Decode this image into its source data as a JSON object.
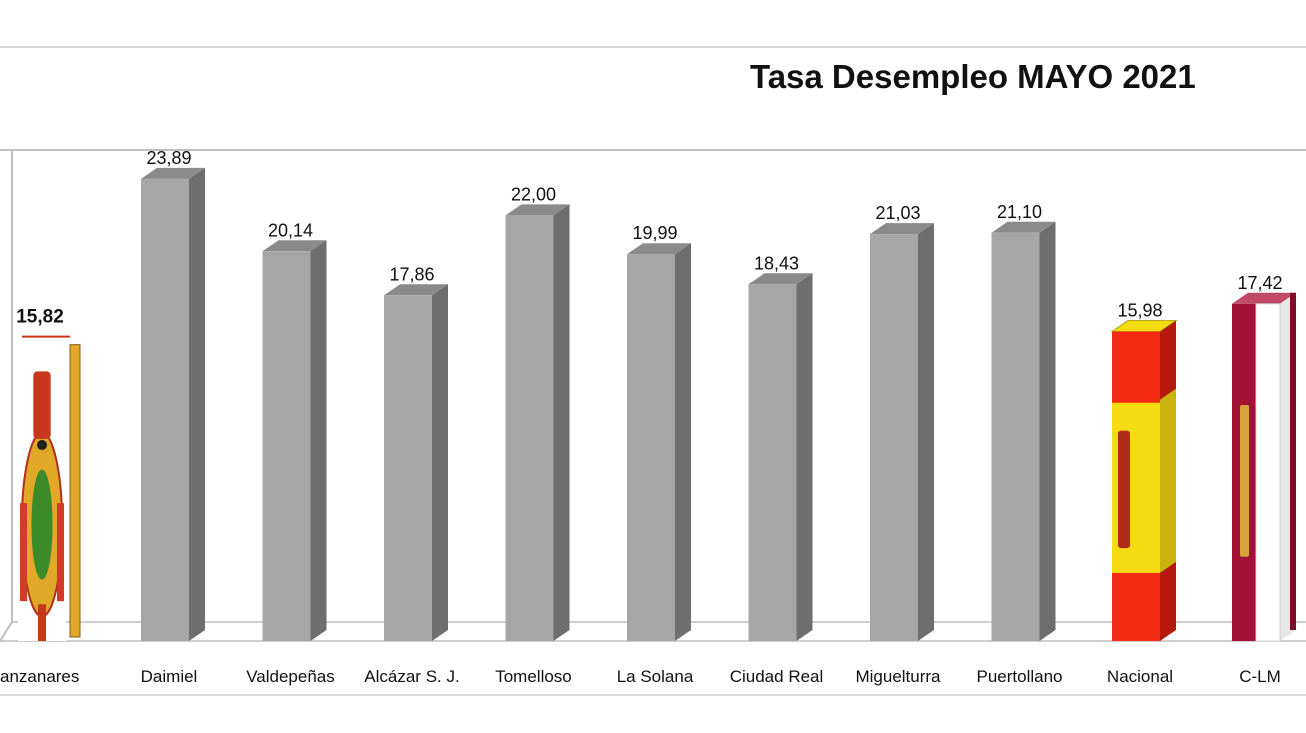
{
  "chart_data": {
    "type": "bar",
    "title": "Tasa Desempleo MAYO 2021",
    "xlabel": "",
    "ylabel": "",
    "ylim": [
      0,
      26
    ],
    "grid": false,
    "legend": "none",
    "categories": [
      "anzanares",
      "Daimiel",
      "Valdepeñas",
      "Alcázar S. J.",
      "Tomelloso",
      "La Solana",
      "Ciudad Real",
      "Miguelturra",
      "Puertollano",
      "Nacional",
      "C-LM"
    ],
    "values": [
      15.82,
      23.89,
      20.14,
      17.86,
      22.0,
      19.99,
      18.43,
      21.03,
      21.1,
      15.98,
      17.42
    ],
    "value_labels": [
      "15,82",
      "23,89",
      "20,14",
      "17,86",
      "22,00",
      "19,99",
      "18,43",
      "21,03",
      "21,10",
      "15,98",
      "17,42"
    ],
    "bar_styles": [
      "coat-of-arms",
      "gray",
      "gray",
      "gray",
      "gray",
      "gray",
      "gray",
      "gray",
      "gray",
      "flag-spain",
      "flag-clm"
    ],
    "highlighted_label_index": 0
  },
  "colors": {
    "bar_front": "#a6a6a6",
    "bar_side": "#6e6e6e",
    "bar_top": "#8a8a8a",
    "frame": "#bfbfbf",
    "spain_red": "#f42a12",
    "spain_yellow": "#f5dc12",
    "clm_crimson": "#a31136",
    "arms_gold": "#e0a826"
  }
}
